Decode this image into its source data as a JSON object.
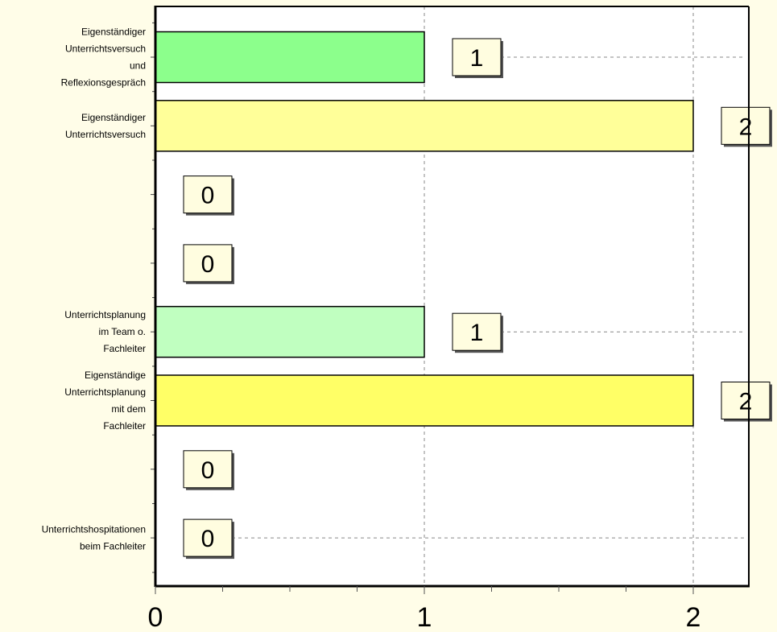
{
  "chart_data": {
    "type": "bar",
    "orientation": "horizontal",
    "categories": [
      "Eigenständiger\nUnterrichtsversuch\nund\nReflexionsgespräch",
      "Eigenständiger\nUnterrichtsversuch",
      "",
      "",
      "Unterrichtsplanung\nim Team o.\nFachleiter",
      "Eigenständige\nUnterrichtsplanung\nmit dem\nFachleiter",
      "",
      "Unterrichtshospitationen\nbeim Fachleiter"
    ],
    "values": [
      1,
      2,
      0,
      0,
      1,
      2,
      0,
      0
    ],
    "bar_colors": [
      "#8CFF8C",
      "#FFFF99",
      "#FFFFFF",
      "#FFFFFF",
      "#C0FFC0",
      "#FFFF66",
      "#FFFFFF",
      "#FFFFFF"
    ],
    "data_labels": [
      "1",
      "2",
      "0",
      "0",
      "1",
      "2",
      "0",
      "0"
    ],
    "xlim": [
      0,
      2.2
    ],
    "x_ticks": [
      "0",
      "1",
      "2"
    ],
    "grid": "vertical dashed at major ticks",
    "title": "",
    "xlabel": "",
    "ylabel": "",
    "background": "#FFFDE8",
    "plot_background": "#FFFFFF"
  }
}
